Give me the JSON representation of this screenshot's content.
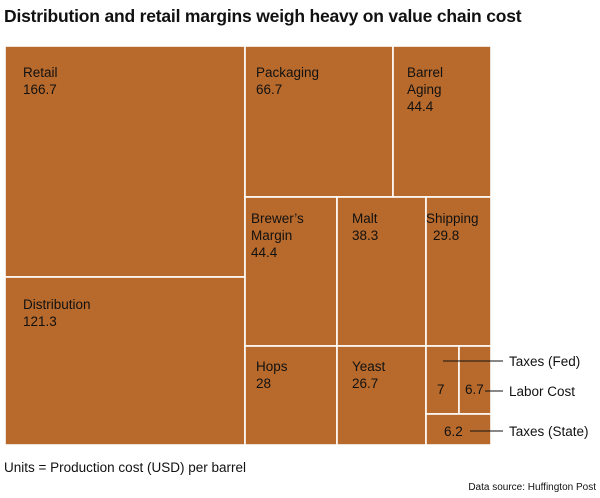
{
  "title": "Distribution and retail margins weigh heavy on value chain cost",
  "units_note": "Units = Production cost (USD) per barrel",
  "source_note": "Data source: Huffington Post",
  "chart_data": {
    "type": "treemap",
    "title": "Distribution and retail margins weigh heavy on value chain cost",
    "color": "#b86a2c",
    "items": [
      {
        "id": "retail",
        "name": "Retail",
        "value": 166.7
      },
      {
        "id": "distribution",
        "name": "Distribution",
        "value": 121.3
      },
      {
        "id": "packaging",
        "name": "Packaging",
        "value": 66.7
      },
      {
        "id": "barrel-aging",
        "name": "Barrel Aging",
        "value": 44.4
      },
      {
        "id": "brewers-margin",
        "name": "Brewer's Margin",
        "value": 44.4
      },
      {
        "id": "malt",
        "name": "Malt",
        "value": 38.3
      },
      {
        "id": "shipping",
        "name": "Shipping",
        "value": 29.8
      },
      {
        "id": "hops",
        "name": "Hops",
        "value": 28
      },
      {
        "id": "yeast",
        "name": "Yeast",
        "value": 26.7
      },
      {
        "id": "taxes-fed",
        "name": "Taxes (Fed)",
        "value": 7
      },
      {
        "id": "labor-cost",
        "name": "Labor Cost",
        "value": 6.7
      },
      {
        "id": "taxes-state",
        "name": "Taxes (State)",
        "value": 6.2
      }
    ]
  }
}
